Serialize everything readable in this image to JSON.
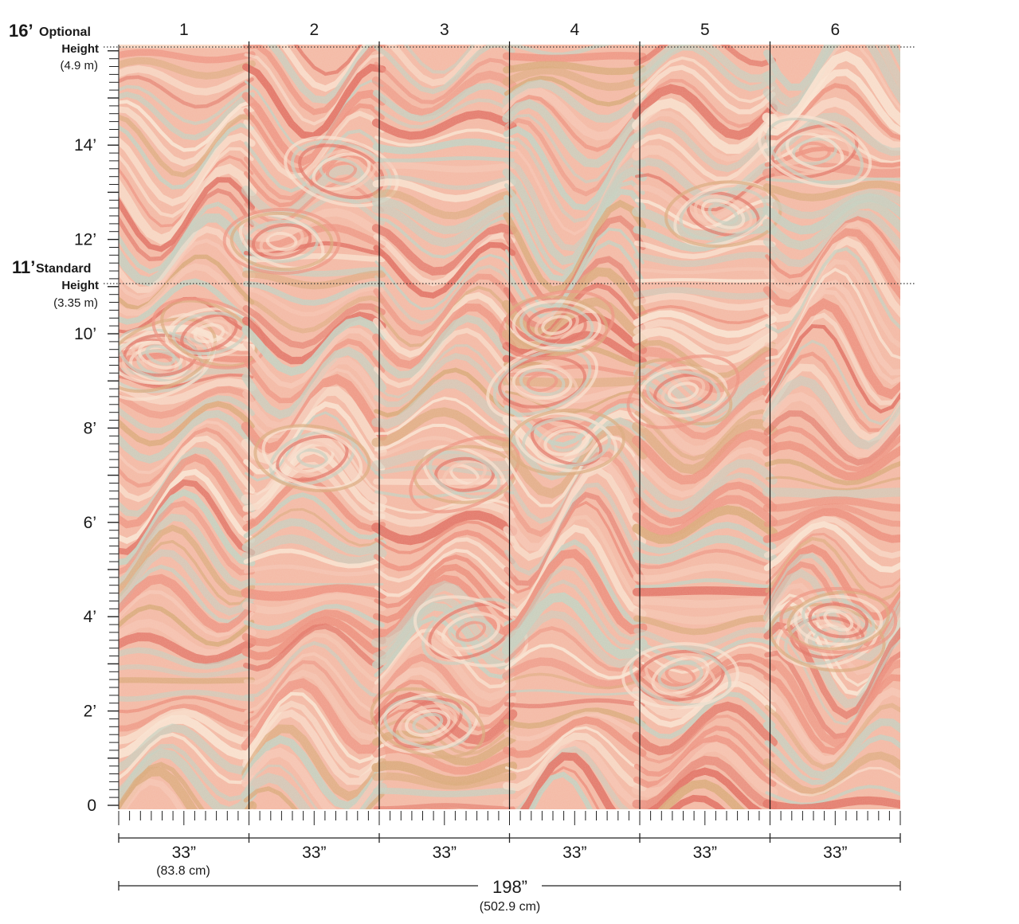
{
  "colors": {
    "panel_base": "#f3b7a2",
    "coral": "#ec8d7a",
    "deep_coral": "#e06e5f",
    "sage": "#c4cdbd",
    "cream": "#f8e1ce",
    "gold": "#d9a777",
    "blush": "#f5c4b1",
    "divider": "#111111",
    "guide_line": "#333333"
  },
  "panels": {
    "numbers": [
      "1",
      "2",
      "3",
      "4",
      "5",
      "6"
    ]
  },
  "heights": {
    "optional": {
      "value": "16’",
      "label": "Optional",
      "label2": "Height",
      "metric": "(4.9 m)"
    },
    "standard": {
      "value": "11’",
      "label": "Standard",
      "label2": "Height",
      "metric": "(3.35 m)"
    }
  },
  "vertical_scale": {
    "labels": [
      "0",
      "2’",
      "4’",
      "6’",
      "8’",
      "10’",
      "12’",
      "14’"
    ]
  },
  "panel_widths": {
    "each": "33”",
    "first_metric": "(83.8 cm)"
  },
  "total_width": {
    "value": "198”",
    "metric": "(502.9 cm)"
  }
}
